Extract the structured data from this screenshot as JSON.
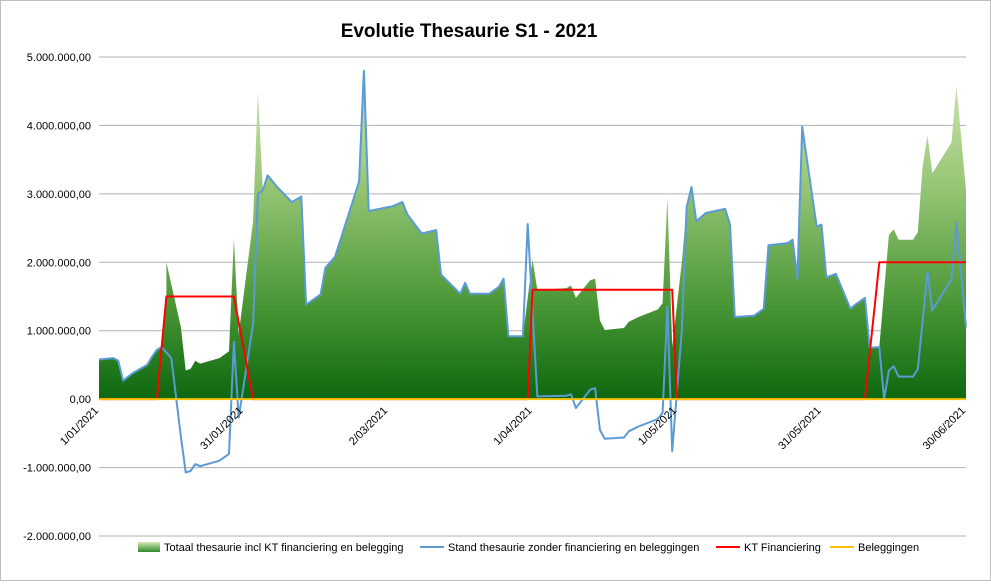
{
  "chart_data": {
    "type": "area",
    "title": "Evolutie Thesaurie S1 - 2021",
    "xlabel": "",
    "ylabel": "",
    "x_type": "date",
    "x_ticks": [
      "2021-01-01",
      "2021-01-31",
      "2021-03-02",
      "2021-04-01",
      "2021-05-01",
      "2021-05-31",
      "2021-06-30"
    ],
    "x_tick_labels": [
      "1/01/2021",
      "31/01/2021",
      "2/03/2021",
      "1/04/2021",
      "1/05/2021",
      "31/05/2021",
      "30/06/2021"
    ],
    "xlim": [
      "2021-01-01",
      "2021-06-30"
    ],
    "ylim": [
      -2000000,
      5000000
    ],
    "y_ticks": [
      -2000000,
      -1000000,
      0,
      1000000,
      2000000,
      3000000,
      4000000,
      5000000
    ],
    "y_tick_labels": [
      "-2.000.000,00",
      "-1.000.000,00",
      "0,00",
      "1.000.000,00",
      "2.000.000,00",
      "3.000.000,00",
      "4.000.000,00",
      "5.000.000,00"
    ],
    "grid": true,
    "legend_position": "bottom",
    "series": [
      {
        "name": "Totaal thesaurie incl KT financiering en belegging",
        "type": "area",
        "color": "#1f7a1f",
        "points": [
          [
            "2021-01-01",
            580000
          ],
          [
            "2021-01-04",
            600000
          ],
          [
            "2021-01-05",
            560000
          ],
          [
            "2021-01-06",
            270000
          ],
          [
            "2021-01-08",
            380000
          ],
          [
            "2021-01-11",
            500000
          ],
          [
            "2021-01-12",
            620000
          ],
          [
            "2021-01-13",
            720000
          ],
          [
            "2021-01-14",
            760000
          ],
          [
            "2021-01-15",
            1500000
          ],
          [
            "2021-01-15",
            2000000
          ],
          [
            "2021-01-18",
            1050000
          ],
          [
            "2021-01-19",
            420000
          ],
          [
            "2021-01-20",
            440000
          ],
          [
            "2021-01-21",
            560000
          ],
          [
            "2021-01-22",
            520000
          ],
          [
            "2021-01-25",
            580000
          ],
          [
            "2021-01-26",
            600000
          ],
          [
            "2021-01-27",
            650000
          ],
          [
            "2021-01-28",
            700000
          ],
          [
            "2021-01-29",
            2350000
          ],
          [
            "2021-01-30",
            950000
          ],
          [
            "2021-02-02",
            2600000
          ],
          [
            "2021-02-03",
            4500000
          ],
          [
            "2021-02-04",
            3050000
          ],
          [
            "2021-02-05",
            3270000
          ],
          [
            "2021-02-07",
            3100000
          ],
          [
            "2021-02-10",
            2880000
          ],
          [
            "2021-02-12",
            2960000
          ],
          [
            "2021-02-13",
            1380000
          ],
          [
            "2021-02-16",
            1530000
          ],
          [
            "2021-02-17",
            1920000
          ],
          [
            "2021-02-19",
            2080000
          ],
          [
            "2021-02-24",
            3180000
          ],
          [
            "2021-02-25",
            4800000
          ],
          [
            "2021-02-26",
            2750000
          ],
          [
            "2021-03-03",
            2820000
          ],
          [
            "2021-03-05",
            2880000
          ],
          [
            "2021-03-06",
            2700000
          ],
          [
            "2021-03-09",
            2420000
          ],
          [
            "2021-03-12",
            2470000
          ],
          [
            "2021-03-13",
            1820000
          ],
          [
            "2021-03-17",
            1540000
          ],
          [
            "2021-03-18",
            1700000
          ],
          [
            "2021-03-19",
            1540000
          ],
          [
            "2021-03-23",
            1540000
          ],
          [
            "2021-03-25",
            1640000
          ],
          [
            "2021-03-26",
            1760000
          ],
          [
            "2021-03-27",
            920000
          ],
          [
            "2021-03-30",
            920000
          ],
          [
            "2021-04-01",
            2040000
          ],
          [
            "2021-04-02",
            1600000
          ],
          [
            "2021-04-08",
            1620000
          ],
          [
            "2021-04-09",
            1660000
          ],
          [
            "2021-04-10",
            1480000
          ],
          [
            "2021-04-13",
            1740000
          ],
          [
            "2021-04-14",
            1760000
          ],
          [
            "2021-04-15",
            1150000
          ],
          [
            "2021-04-16",
            1010000
          ],
          [
            "2021-04-20",
            1040000
          ],
          [
            "2021-04-21",
            1130000
          ],
          [
            "2021-04-23",
            1200000
          ],
          [
            "2021-04-27",
            1310000
          ],
          [
            "2021-04-28",
            1400000
          ],
          [
            "2021-04-29",
            2950000
          ],
          [
            "2021-04-30",
            760000
          ],
          [
            "2021-05-02",
            2000000
          ],
          [
            "2021-05-03",
            2800000
          ],
          [
            "2021-05-04",
            3100000
          ],
          [
            "2021-05-05",
            2600000
          ],
          [
            "2021-05-07",
            2720000
          ],
          [
            "2021-05-11",
            2780000
          ],
          [
            "2021-05-12",
            2550000
          ],
          [
            "2021-05-13",
            1200000
          ],
          [
            "2021-05-17",
            1220000
          ],
          [
            "2021-05-19",
            1320000
          ],
          [
            "2021-05-20",
            2250000
          ],
          [
            "2021-05-24",
            2280000
          ],
          [
            "2021-05-25",
            2330000
          ],
          [
            "2021-05-26",
            1760000
          ],
          [
            "2021-05-27",
            3980000
          ],
          [
            "2021-05-29",
            3000000
          ],
          [
            "2021-05-30",
            2520000
          ],
          [
            "2021-05-31",
            2550000
          ],
          [
            "2021-06-01",
            1780000
          ],
          [
            "2021-06-03",
            1830000
          ],
          [
            "2021-06-06",
            1320000
          ],
          [
            "2021-06-07",
            1380000
          ],
          [
            "2021-06-09",
            1480000
          ],
          [
            "2021-06-10",
            750000
          ],
          [
            "2021-06-12",
            760000
          ],
          [
            "2021-06-14",
            2400000
          ],
          [
            "2021-06-15",
            2480000
          ],
          [
            "2021-06-16",
            2330000
          ],
          [
            "2021-06-19",
            2330000
          ],
          [
            "2021-06-20",
            2440000
          ],
          [
            "2021-06-21",
            3400000
          ],
          [
            "2021-06-22",
            3850000
          ],
          [
            "2021-06-23",
            3300000
          ],
          [
            "2021-06-27",
            3750000
          ],
          [
            "2021-06-28",
            4580000
          ],
          [
            "2021-06-30",
            3050000
          ]
        ]
      },
      {
        "name": "Stand thesaurie zonder financiering en beleggingen",
        "type": "line",
        "color": "#5b9bd5",
        "points": [
          [
            "2021-01-01",
            580000
          ],
          [
            "2021-01-04",
            600000
          ],
          [
            "2021-01-05",
            560000
          ],
          [
            "2021-01-06",
            270000
          ],
          [
            "2021-01-08",
            380000
          ],
          [
            "2021-01-11",
            500000
          ],
          [
            "2021-01-12",
            620000
          ],
          [
            "2021-01-13",
            720000
          ],
          [
            "2021-01-14",
            760000
          ],
          [
            "2021-01-16",
            600000
          ],
          [
            "2021-01-18",
            -550000
          ],
          [
            "2021-01-19",
            -1070000
          ],
          [
            "2021-01-20",
            -1050000
          ],
          [
            "2021-01-21",
            -950000
          ],
          [
            "2021-01-22",
            -980000
          ],
          [
            "2021-01-25",
            -920000
          ],
          [
            "2021-01-26",
            -900000
          ],
          [
            "2021-01-27",
            -850000
          ],
          [
            "2021-01-28",
            -800000
          ],
          [
            "2021-01-29",
            840000
          ],
          [
            "2021-01-30",
            -270000
          ],
          [
            "2021-02-02",
            1100000
          ],
          [
            "2021-02-03",
            3000000
          ],
          [
            "2021-02-04",
            3050000
          ],
          [
            "2021-02-05",
            3270000
          ],
          [
            "2021-02-07",
            3100000
          ],
          [
            "2021-02-10",
            2880000
          ],
          [
            "2021-02-12",
            2960000
          ],
          [
            "2021-02-13",
            1380000
          ],
          [
            "2021-02-16",
            1530000
          ],
          [
            "2021-02-17",
            1920000
          ],
          [
            "2021-02-19",
            2080000
          ],
          [
            "2021-02-24",
            3180000
          ],
          [
            "2021-02-25",
            4800000
          ],
          [
            "2021-02-26",
            2750000
          ],
          [
            "2021-03-03",
            2820000
          ],
          [
            "2021-03-05",
            2880000
          ],
          [
            "2021-03-06",
            2700000
          ],
          [
            "2021-03-09",
            2420000
          ],
          [
            "2021-03-12",
            2470000
          ],
          [
            "2021-03-13",
            1820000
          ],
          [
            "2021-03-17",
            1540000
          ],
          [
            "2021-03-18",
            1700000
          ],
          [
            "2021-03-19",
            1540000
          ],
          [
            "2021-03-23",
            1540000
          ],
          [
            "2021-03-25",
            1640000
          ],
          [
            "2021-03-26",
            1760000
          ],
          [
            "2021-03-27",
            920000
          ],
          [
            "2021-03-30",
            920000
          ],
          [
            "2021-03-31",
            2560000
          ],
          [
            "2021-04-02",
            40000
          ],
          [
            "2021-04-08",
            50000
          ],
          [
            "2021-04-09",
            70000
          ],
          [
            "2021-04-10",
            -130000
          ],
          [
            "2021-04-13",
            140000
          ],
          [
            "2021-04-14",
            160000
          ],
          [
            "2021-04-15",
            -450000
          ],
          [
            "2021-04-16",
            -580000
          ],
          [
            "2021-04-20",
            -560000
          ],
          [
            "2021-04-21",
            -470000
          ],
          [
            "2021-04-23",
            -400000
          ],
          [
            "2021-04-27",
            -290000
          ],
          [
            "2021-04-28",
            -200000
          ],
          [
            "2021-04-29",
            1350000
          ],
          [
            "2021-04-30",
            -760000
          ],
          [
            "2021-05-02",
            1000000
          ],
          [
            "2021-05-03",
            2800000
          ],
          [
            "2021-05-04",
            3100000
          ],
          [
            "2021-05-05",
            2600000
          ],
          [
            "2021-05-07",
            2720000
          ],
          [
            "2021-05-11",
            2780000
          ],
          [
            "2021-05-12",
            2550000
          ],
          [
            "2021-05-13",
            1200000
          ],
          [
            "2021-05-17",
            1220000
          ],
          [
            "2021-05-19",
            1320000
          ],
          [
            "2021-05-20",
            2250000
          ],
          [
            "2021-05-24",
            2280000
          ],
          [
            "2021-05-25",
            2330000
          ],
          [
            "2021-05-26",
            1760000
          ],
          [
            "2021-05-27",
            3980000
          ],
          [
            "2021-05-29",
            3000000
          ],
          [
            "2021-05-30",
            2520000
          ],
          [
            "2021-05-31",
            2550000
          ],
          [
            "2021-06-01",
            1780000
          ],
          [
            "2021-06-03",
            1830000
          ],
          [
            "2021-06-06",
            1320000
          ],
          [
            "2021-06-07",
            1380000
          ],
          [
            "2021-06-09",
            1480000
          ],
          [
            "2021-06-10",
            750000
          ],
          [
            "2021-06-12",
            760000
          ],
          [
            "2021-06-13",
            0
          ],
          [
            "2021-06-14",
            420000
          ],
          [
            "2021-06-15",
            480000
          ],
          [
            "2021-06-16",
            330000
          ],
          [
            "2021-06-19",
            330000
          ],
          [
            "2021-06-20",
            440000
          ],
          [
            "2021-06-22",
            1860000
          ],
          [
            "2021-06-23",
            1300000
          ],
          [
            "2021-06-27",
            1750000
          ],
          [
            "2021-06-28",
            2580000
          ],
          [
            "2021-06-30",
            1050000
          ]
        ]
      },
      {
        "name": "KT Financiering",
        "type": "line",
        "color": "#ff0000",
        "points": [
          [
            "2021-01-01",
            0
          ],
          [
            "2021-01-13",
            0
          ],
          [
            "2021-01-15",
            1500000
          ],
          [
            "2021-01-29",
            1500000
          ],
          [
            "2021-02-02",
            0
          ],
          [
            "2021-03-31",
            0
          ],
          [
            "2021-04-01",
            1600000
          ],
          [
            "2021-04-30",
            1600000
          ],
          [
            "2021-05-01",
            0
          ],
          [
            "2021-06-09",
            0
          ],
          [
            "2021-06-12",
            2000000
          ],
          [
            "2021-06-30",
            2000000
          ]
        ]
      },
      {
        "name": "Beleggingen",
        "type": "line",
        "color": "#ffc000",
        "points": [
          [
            "2021-01-01",
            0
          ],
          [
            "2021-06-30",
            0
          ]
        ]
      }
    ]
  }
}
